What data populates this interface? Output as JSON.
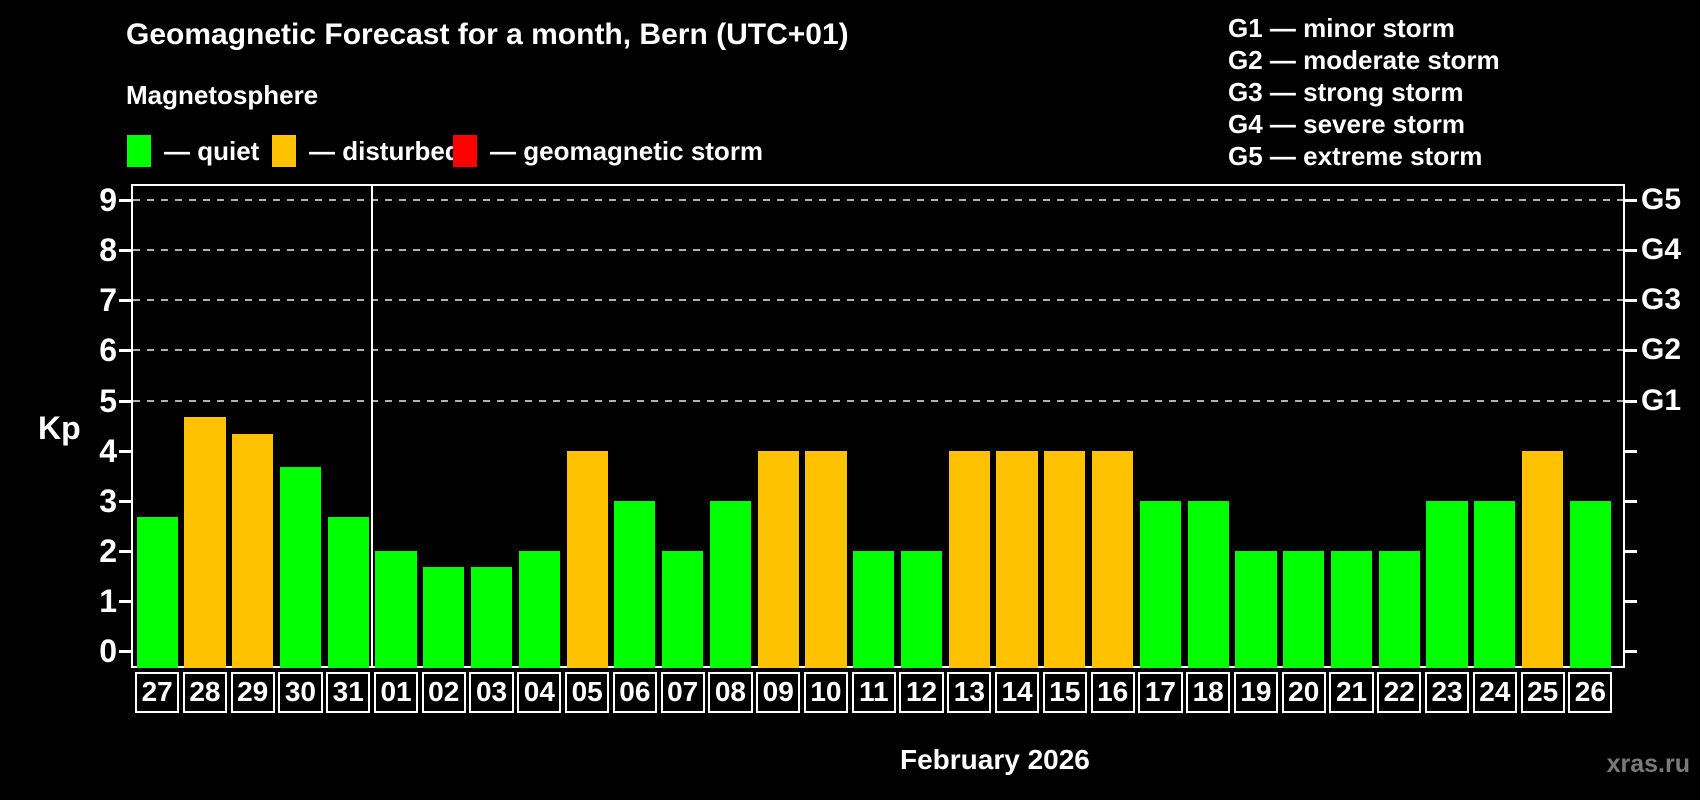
{
  "title": "Geomagnetic Forecast for a month, Bern (UTC+01)",
  "subtitle": "Magnetosphere",
  "legend": {
    "items": [
      {
        "key": "quiet",
        "label": "— quiet",
        "color": "#00ff00"
      },
      {
        "key": "disturbed",
        "label": "— disturbed",
        "color": "#ffc200"
      },
      {
        "key": "storm",
        "label": "— geomagnetic storm",
        "color": "#ff0000"
      }
    ]
  },
  "g_scale_legend": [
    "G1 — minor storm",
    "G2 — moderate storm",
    "G3 — strong storm",
    "G4 — severe storm",
    "G5 — extreme storm"
  ],
  "watermark": "xras.ru",
  "chart_data": {
    "type": "bar",
    "title": "Geomagnetic Forecast for a month, Bern (UTC+01)",
    "xlabel": "February 2026",
    "ylabel": "Kp",
    "ylim": [
      0,
      9
    ],
    "yticks": [
      0,
      1,
      2,
      3,
      4,
      5,
      6,
      7,
      8,
      9
    ],
    "gridlines_at_kp": [
      5,
      6,
      7,
      8,
      9
    ],
    "grid": "horizontal dashed lines at storm levels only",
    "legend_position": "top-left",
    "right_axis": [
      {
        "label": "G1",
        "kp": 5
      },
      {
        "label": "G2",
        "kp": 6
      },
      {
        "label": "G3",
        "kp": 7
      },
      {
        "label": "G4",
        "kp": 8
      },
      {
        "label": "G5",
        "kp": 9
      }
    ],
    "categories": [
      "27",
      "28",
      "29",
      "30",
      "31",
      "01",
      "02",
      "03",
      "04",
      "05",
      "06",
      "07",
      "08",
      "09",
      "10",
      "11",
      "12",
      "13",
      "14",
      "15",
      "16",
      "17",
      "18",
      "19",
      "20",
      "21",
      "22",
      "23",
      "24",
      "25",
      "26"
    ],
    "values": [
      2.67,
      4.67,
      4.33,
      3.67,
      2.67,
      2,
      1.67,
      1.67,
      2,
      4,
      3,
      2,
      3,
      4,
      4,
      2,
      2,
      4,
      4,
      4,
      4,
      3,
      3,
      2,
      2,
      2,
      2,
      3,
      3,
      4,
      3
    ],
    "states": [
      "quiet",
      "disturbed",
      "disturbed",
      "quiet",
      "quiet",
      "quiet",
      "quiet",
      "quiet",
      "quiet",
      "disturbed",
      "quiet",
      "quiet",
      "quiet",
      "disturbed",
      "disturbed",
      "quiet",
      "quiet",
      "disturbed",
      "disturbed",
      "disturbed",
      "disturbed",
      "quiet",
      "quiet",
      "quiet",
      "quiet",
      "quiet",
      "quiet",
      "quiet",
      "quiet",
      "disturbed",
      "quiet"
    ],
    "month_separator_after_index": 4
  }
}
